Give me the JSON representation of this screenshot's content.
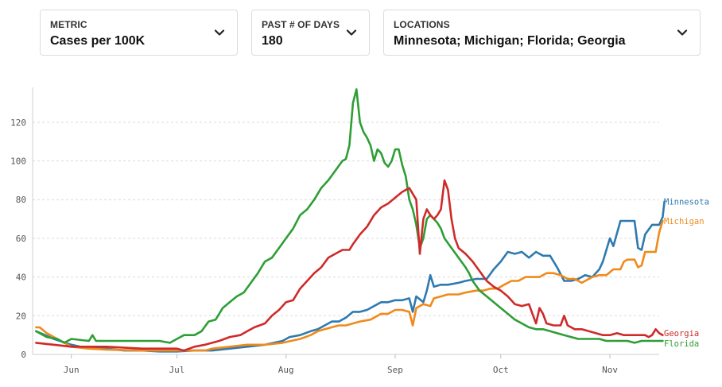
{
  "controls": {
    "metric": {
      "label": "METRIC",
      "value": "Cases per 100K"
    },
    "days": {
      "label": "PAST # OF DAYS",
      "value": "180"
    },
    "locations": {
      "label": "LOCATIONS",
      "value": "Minnesota; Michigan; Florida; Georgia"
    }
  },
  "chart_data": {
    "type": "line",
    "title": "",
    "xlabel": "",
    "ylabel": "",
    "x_ticks": [
      "Jun",
      "Jul",
      "Aug",
      "Sep",
      "Oct",
      "Nov"
    ],
    "x_tick_days": [
      10,
      40,
      71,
      102,
      132,
      163
    ],
    "xlim": [
      -1,
      177
    ],
    "y_ticks": [
      0,
      20,
      40,
      60,
      80,
      100,
      120
    ],
    "ylim": [
      0,
      138
    ],
    "grid": true,
    "series": [
      {
        "name": "Minnesota",
        "color": "#2e7ab0",
        "points": [
          [
            0,
            12
          ],
          [
            5,
            8
          ],
          [
            10,
            5
          ],
          [
            15,
            3
          ],
          [
            20,
            3
          ],
          [
            25,
            2
          ],
          [
            30,
            2
          ],
          [
            35,
            1.5
          ],
          [
            40,
            1.5
          ],
          [
            45,
            2
          ],
          [
            50,
            2
          ],
          [
            55,
            3
          ],
          [
            60,
            4
          ],
          [
            65,
            5
          ],
          [
            70,
            7
          ],
          [
            72,
            9
          ],
          [
            75,
            10
          ],
          [
            78,
            12
          ],
          [
            80,
            13
          ],
          [
            82,
            15
          ],
          [
            84,
            17
          ],
          [
            86,
            17
          ],
          [
            88,
            19
          ],
          [
            90,
            22
          ],
          [
            92,
            22
          ],
          [
            94,
            23
          ],
          [
            96,
            25
          ],
          [
            98,
            27
          ],
          [
            100,
            27
          ],
          [
            102,
            28
          ],
          [
            104,
            28
          ],
          [
            106,
            29
          ],
          [
            107,
            22
          ],
          [
            108,
            30
          ],
          [
            110,
            27
          ],
          [
            111,
            33
          ],
          [
            112,
            41
          ],
          [
            113,
            35
          ],
          [
            115,
            36
          ],
          [
            117,
            36
          ],
          [
            120,
            37
          ],
          [
            122,
            38
          ],
          [
            125,
            39
          ],
          [
            128,
            39
          ],
          [
            130,
            44
          ],
          [
            132,
            48
          ],
          [
            134,
            53
          ],
          [
            136,
            52
          ],
          [
            138,
            53
          ],
          [
            140,
            50
          ],
          [
            142,
            53
          ],
          [
            144,
            51
          ],
          [
            146,
            51
          ],
          [
            148,
            45
          ],
          [
            150,
            38
          ],
          [
            152,
            38
          ],
          [
            154,
            39
          ],
          [
            156,
            41
          ],
          [
            158,
            40
          ],
          [
            160,
            44
          ],
          [
            161,
            48
          ],
          [
            163,
            60
          ],
          [
            164,
            56
          ],
          [
            166,
            69
          ],
          [
            168,
            69
          ],
          [
            170,
            69
          ],
          [
            171,
            55
          ],
          [
            172,
            54
          ],
          [
            173,
            62
          ],
          [
            175,
            67
          ],
          [
            177,
            67
          ],
          [
            178,
            71
          ],
          [
            178.5,
            79
          ]
        ]
      },
      {
        "name": "Michigan",
        "color": "#ef8a1b",
        "points": [
          [
            0,
            14
          ],
          [
            1,
            14
          ],
          [
            3,
            11
          ],
          [
            5,
            9
          ],
          [
            8,
            6
          ],
          [
            10,
            4
          ],
          [
            15,
            3
          ],
          [
            20,
            2.5
          ],
          [
            30,
            2
          ],
          [
            40,
            2
          ],
          [
            45,
            2
          ],
          [
            48,
            2
          ],
          [
            50,
            3
          ],
          [
            55,
            4
          ],
          [
            60,
            5
          ],
          [
            65,
            5
          ],
          [
            70,
            6
          ],
          [
            75,
            8
          ],
          [
            78,
            10
          ],
          [
            80,
            12
          ],
          [
            82,
            13
          ],
          [
            84,
            14
          ],
          [
            86,
            15
          ],
          [
            88,
            15
          ],
          [
            90,
            16
          ],
          [
            92,
            17
          ],
          [
            95,
            18
          ],
          [
            98,
            21
          ],
          [
            100,
            21
          ],
          [
            102,
            23
          ],
          [
            104,
            23
          ],
          [
            106,
            22
          ],
          [
            107,
            15
          ],
          [
            108,
            24
          ],
          [
            110,
            26
          ],
          [
            112,
            25
          ],
          [
            113,
            29
          ],
          [
            115,
            30
          ],
          [
            117,
            31
          ],
          [
            120,
            31
          ],
          [
            122,
            32
          ],
          [
            125,
            33
          ],
          [
            127,
            33
          ],
          [
            129,
            34
          ],
          [
            131,
            34
          ],
          [
            133,
            36
          ],
          [
            135,
            38
          ],
          [
            137,
            38
          ],
          [
            139,
            40
          ],
          [
            141,
            40
          ],
          [
            143,
            40
          ],
          [
            145,
            42
          ],
          [
            147,
            42
          ],
          [
            149,
            41
          ],
          [
            151,
            39
          ],
          [
            153,
            39
          ],
          [
            155,
            37
          ],
          [
            158,
            40
          ],
          [
            160,
            41
          ],
          [
            162,
            41
          ],
          [
            164,
            44
          ],
          [
            166,
            44
          ],
          [
            167,
            48
          ],
          [
            168,
            49
          ],
          [
            169,
            49
          ],
          [
            170,
            49
          ],
          [
            171,
            45
          ],
          [
            172,
            46
          ],
          [
            173,
            53
          ],
          [
            174,
            53
          ],
          [
            176,
            53
          ],
          [
            177,
            63
          ],
          [
            178,
            69
          ]
        ]
      },
      {
        "name": "Florida",
        "color": "#2e9e35",
        "points": [
          [
            0,
            12
          ],
          [
            3,
            9
          ],
          [
            6,
            8
          ],
          [
            8,
            6
          ],
          [
            10,
            8
          ],
          [
            15,
            7
          ],
          [
            16,
            10
          ],
          [
            17,
            7
          ],
          [
            20,
            7
          ],
          [
            25,
            7
          ],
          [
            30,
            7
          ],
          [
            35,
            7
          ],
          [
            38,
            6
          ],
          [
            40,
            8
          ],
          [
            42,
            10
          ],
          [
            45,
            10
          ],
          [
            47,
            12
          ],
          [
            49,
            17
          ],
          [
            51,
            18
          ],
          [
            53,
            24
          ],
          [
            55,
            27
          ],
          [
            57,
            30
          ],
          [
            59,
            32
          ],
          [
            61,
            37
          ],
          [
            63,
            42
          ],
          [
            65,
            48
          ],
          [
            67,
            50
          ],
          [
            69,
            55
          ],
          [
            71,
            60
          ],
          [
            73,
            65
          ],
          [
            75,
            72
          ],
          [
            77,
            75
          ],
          [
            79,
            80
          ],
          [
            81,
            86
          ],
          [
            83,
            90
          ],
          [
            85,
            95
          ],
          [
            87,
            100
          ],
          [
            88,
            101
          ],
          [
            89,
            108
          ],
          [
            90,
            130
          ],
          [
            91,
            137
          ],
          [
            92,
            120
          ],
          [
            93,
            115
          ],
          [
            94,
            112
          ],
          [
            95,
            108
          ],
          [
            96,
            100
          ],
          [
            97,
            106
          ],
          [
            98,
            104
          ],
          [
            99,
            99
          ],
          [
            100,
            97
          ],
          [
            101,
            100
          ],
          [
            102,
            106
          ],
          [
            103,
            106
          ],
          [
            104,
            98
          ],
          [
            105,
            92
          ],
          [
            106,
            80
          ],
          [
            107,
            75
          ],
          [
            108,
            67
          ],
          [
            109,
            55
          ],
          [
            110,
            60
          ],
          [
            111,
            70
          ],
          [
            112,
            72
          ],
          [
            113,
            70
          ],
          [
            114,
            68
          ],
          [
            115,
            65
          ],
          [
            116,
            60
          ],
          [
            118,
            55
          ],
          [
            120,
            50
          ],
          [
            122,
            45
          ],
          [
            123,
            42
          ],
          [
            124,
            38
          ],
          [
            126,
            33
          ],
          [
            128,
            30
          ],
          [
            130,
            27
          ],
          [
            132,
            24
          ],
          [
            134,
            21
          ],
          [
            136,
            18
          ],
          [
            138,
            16
          ],
          [
            140,
            14
          ],
          [
            142,
            13
          ],
          [
            144,
            13
          ],
          [
            146,
            12
          ],
          [
            148,
            11
          ],
          [
            150,
            10
          ],
          [
            152,
            9
          ],
          [
            154,
            8
          ],
          [
            156,
            8
          ],
          [
            158,
            8
          ],
          [
            160,
            8
          ],
          [
            162,
            7
          ],
          [
            164,
            7
          ],
          [
            166,
            7
          ],
          [
            168,
            7
          ],
          [
            170,
            6
          ],
          [
            172,
            7
          ],
          [
            174,
            7
          ],
          [
            176,
            7
          ],
          [
            178,
            7
          ]
        ]
      },
      {
        "name": "Georgia",
        "color": "#cf2a2a",
        "points": [
          [
            0,
            6
          ],
          [
            5,
            5
          ],
          [
            10,
            4
          ],
          [
            20,
            4
          ],
          [
            30,
            3
          ],
          [
            40,
            3
          ],
          [
            42,
            2
          ],
          [
            45,
            4
          ],
          [
            48,
            5
          ],
          [
            50,
            6
          ],
          [
            52,
            7
          ],
          [
            55,
            9
          ],
          [
            58,
            10
          ],
          [
            60,
            12
          ],
          [
            62,
            14
          ],
          [
            65,
            16
          ],
          [
            67,
            20
          ],
          [
            69,
            23
          ],
          [
            71,
            27
          ],
          [
            73,
            28
          ],
          [
            75,
            34
          ],
          [
            77,
            38
          ],
          [
            79,
            42
          ],
          [
            81,
            45
          ],
          [
            83,
            50
          ],
          [
            85,
            52
          ],
          [
            87,
            54
          ],
          [
            89,
            54
          ],
          [
            90,
            57
          ],
          [
            92,
            62
          ],
          [
            94,
            66
          ],
          [
            96,
            72
          ],
          [
            98,
            76
          ],
          [
            100,
            78
          ],
          [
            102,
            81
          ],
          [
            104,
            84
          ],
          [
            106,
            86
          ],
          [
            107,
            83
          ],
          [
            108,
            80
          ],
          [
            109,
            52
          ],
          [
            110,
            70
          ],
          [
            111,
            75
          ],
          [
            112,
            72
          ],
          [
            113,
            70
          ],
          [
            114,
            72
          ],
          [
            115,
            75
          ],
          [
            116,
            90
          ],
          [
            117,
            85
          ],
          [
            118,
            70
          ],
          [
            119,
            60
          ],
          [
            120,
            55
          ],
          [
            122,
            52
          ],
          [
            124,
            48
          ],
          [
            126,
            43
          ],
          [
            128,
            38
          ],
          [
            130,
            35
          ],
          [
            132,
            33
          ],
          [
            134,
            30
          ],
          [
            136,
            26
          ],
          [
            138,
            25
          ],
          [
            140,
            26
          ],
          [
            141,
            21
          ],
          [
            142,
            16
          ],
          [
            143,
            24
          ],
          [
            144,
            21
          ],
          [
            145,
            16
          ],
          [
            147,
            15
          ],
          [
            149,
            15
          ],
          [
            150,
            20
          ],
          [
            151,
            15
          ],
          [
            153,
            13
          ],
          [
            155,
            13
          ],
          [
            157,
            12
          ],
          [
            159,
            11
          ],
          [
            161,
            10
          ],
          [
            163,
            10
          ],
          [
            165,
            11
          ],
          [
            167,
            10
          ],
          [
            169,
            10
          ],
          [
            171,
            10
          ],
          [
            173,
            10
          ],
          [
            174,
            9
          ],
          [
            175,
            10
          ],
          [
            176,
            13
          ],
          [
            177,
            11
          ],
          [
            178,
            10
          ]
        ]
      }
    ]
  }
}
